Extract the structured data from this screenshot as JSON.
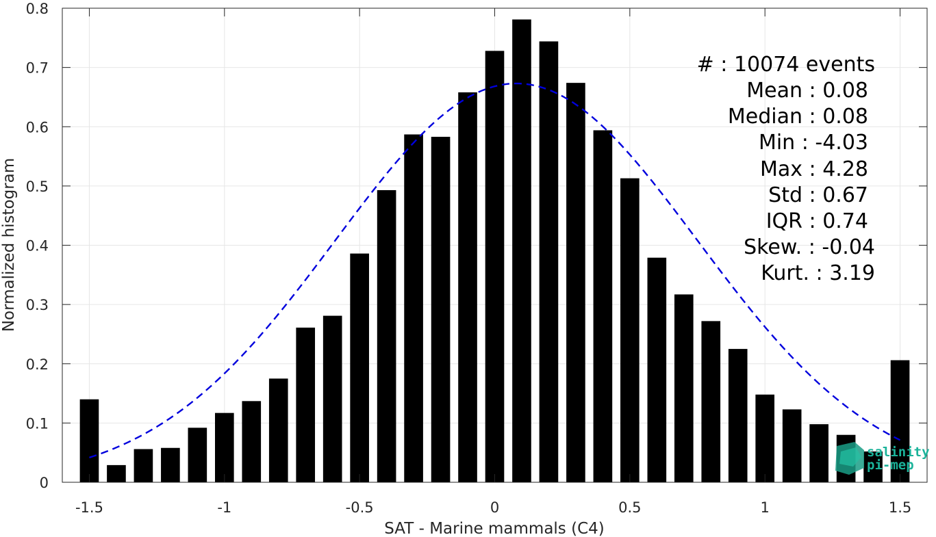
{
  "chart_data": {
    "type": "bar",
    "xlabel": "SAT - Marine mammals (C4)",
    "ylabel": "Normalized histogram",
    "xlim": [
      -1.6,
      1.6
    ],
    "ylim": [
      0,
      0.8
    ],
    "x_ticks": [
      "-1.5",
      "-1",
      "-0.5",
      "0",
      "0.5",
      "1",
      "1.5"
    ],
    "x_tick_values": [
      -1.5,
      -1,
      -0.5,
      0,
      0.5,
      1,
      1.5
    ],
    "y_ticks": [
      "0",
      "0.1",
      "0.2",
      "0.3",
      "0.4",
      "0.5",
      "0.6",
      "0.7",
      "0.8"
    ],
    "y_tick_values": [
      0,
      0.1,
      0.2,
      0.3,
      0.4,
      0.5,
      0.6,
      0.7,
      0.8
    ],
    "grid": true,
    "bar_color": "#000000",
    "bar_width": 0.07,
    "bars": {
      "x": [
        -1.5,
        -1.4,
        -1.3,
        -1.2,
        -1.1,
        -1.0,
        -0.9,
        -0.8,
        -0.7,
        -0.6,
        -0.5,
        -0.4,
        -0.3,
        -0.2,
        -0.1,
        0.0,
        0.1,
        0.2,
        0.3,
        0.4,
        0.5,
        0.6,
        0.7,
        0.8,
        0.9,
        1.0,
        1.1,
        1.2,
        1.3,
        1.4,
        1.5
      ],
      "values": [
        0.14,
        0.029,
        0.056,
        0.058,
        0.092,
        0.117,
        0.137,
        0.175,
        0.261,
        0.281,
        0.386,
        0.493,
        0.587,
        0.583,
        0.658,
        0.728,
        0.781,
        0.744,
        0.674,
        0.594,
        0.513,
        0.379,
        0.317,
        0.272,
        0.225,
        0.148,
        0.123,
        0.098,
        0.08,
        0.052,
        0.206
      ]
    },
    "fit": {
      "type": "gaussian",
      "mean": 0.08,
      "std": 0.67,
      "peak": 0.673,
      "x_range": [
        -1.5,
        1.5
      ],
      "color": "#0000dd",
      "style": "dashed"
    }
  },
  "stats": [
    "#  : 10074 events",
    "Mean : 0.08",
    "Median : 0.08",
    "Min : -4.03",
    "Max : 4.28",
    "Std : 0.67",
    "IQR : 0.74",
    "Skew. : -0.04",
    "Kurt. : 3.19"
  ],
  "logo": {
    "line1": "salinity",
    "line2": "pi-mep",
    "color": "#1bb39a"
  }
}
